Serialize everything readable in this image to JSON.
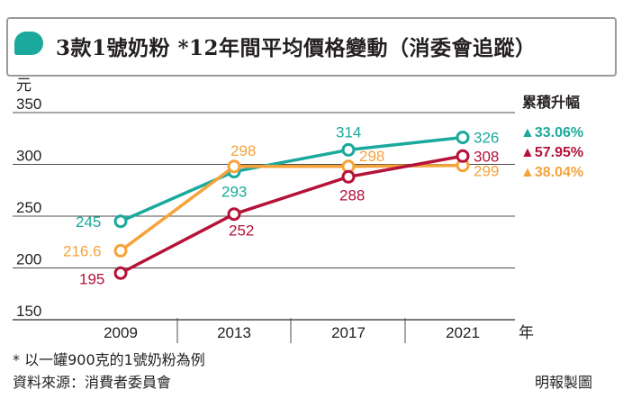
{
  "header": {
    "title": "3款1號奶粉 *12年間平均價格變動（消委會追蹤）",
    "icon": "speech-bubble-icon"
  },
  "legend": {
    "title": "累積升幅"
  },
  "footer": {
    "footnote": "* 以一罐900克的1號奶粉為例",
    "source": "資料來源：消費者委員會",
    "credit": "明報製圖"
  },
  "colors": {
    "teal": "#1aa99c",
    "red": "#b5123a",
    "orange": "#f5a33b",
    "grid": "#4d4d4d",
    "frame": "#9a9a9a"
  },
  "chart_data": {
    "type": "line",
    "title": "3款1號奶粉 *12年間平均價格變動（消委會追蹤）",
    "ylabel": "元",
    "xlabel": "年",
    "categories": [
      "2009",
      "2013",
      "2017",
      "2021"
    ],
    "ylim": [
      150,
      350
    ],
    "yticks": [
      "350",
      "300",
      "250",
      "200",
      "150"
    ],
    "grid": true,
    "legend_position": "right",
    "series": [
      {
        "values": [
          245,
          293,
          314,
          326
        ],
        "labels": [
          "245",
          "293",
          "314",
          "326"
        ],
        "color": "#1aa99c",
        "rise": "▲33.06%"
      },
      {
        "values": [
          216.6,
          298,
          298,
          299
        ],
        "labels": [
          "216.6",
          "298",
          "298",
          "299"
        ],
        "color": "#f5a33b",
        "rise": "▲38.04%"
      },
      {
        "values": [
          195,
          252,
          288,
          308
        ],
        "labels": [
          "195",
          "252",
          "288",
          "308"
        ],
        "color": "#b5123a",
        "rise": "▲57.95%"
      }
    ]
  }
}
